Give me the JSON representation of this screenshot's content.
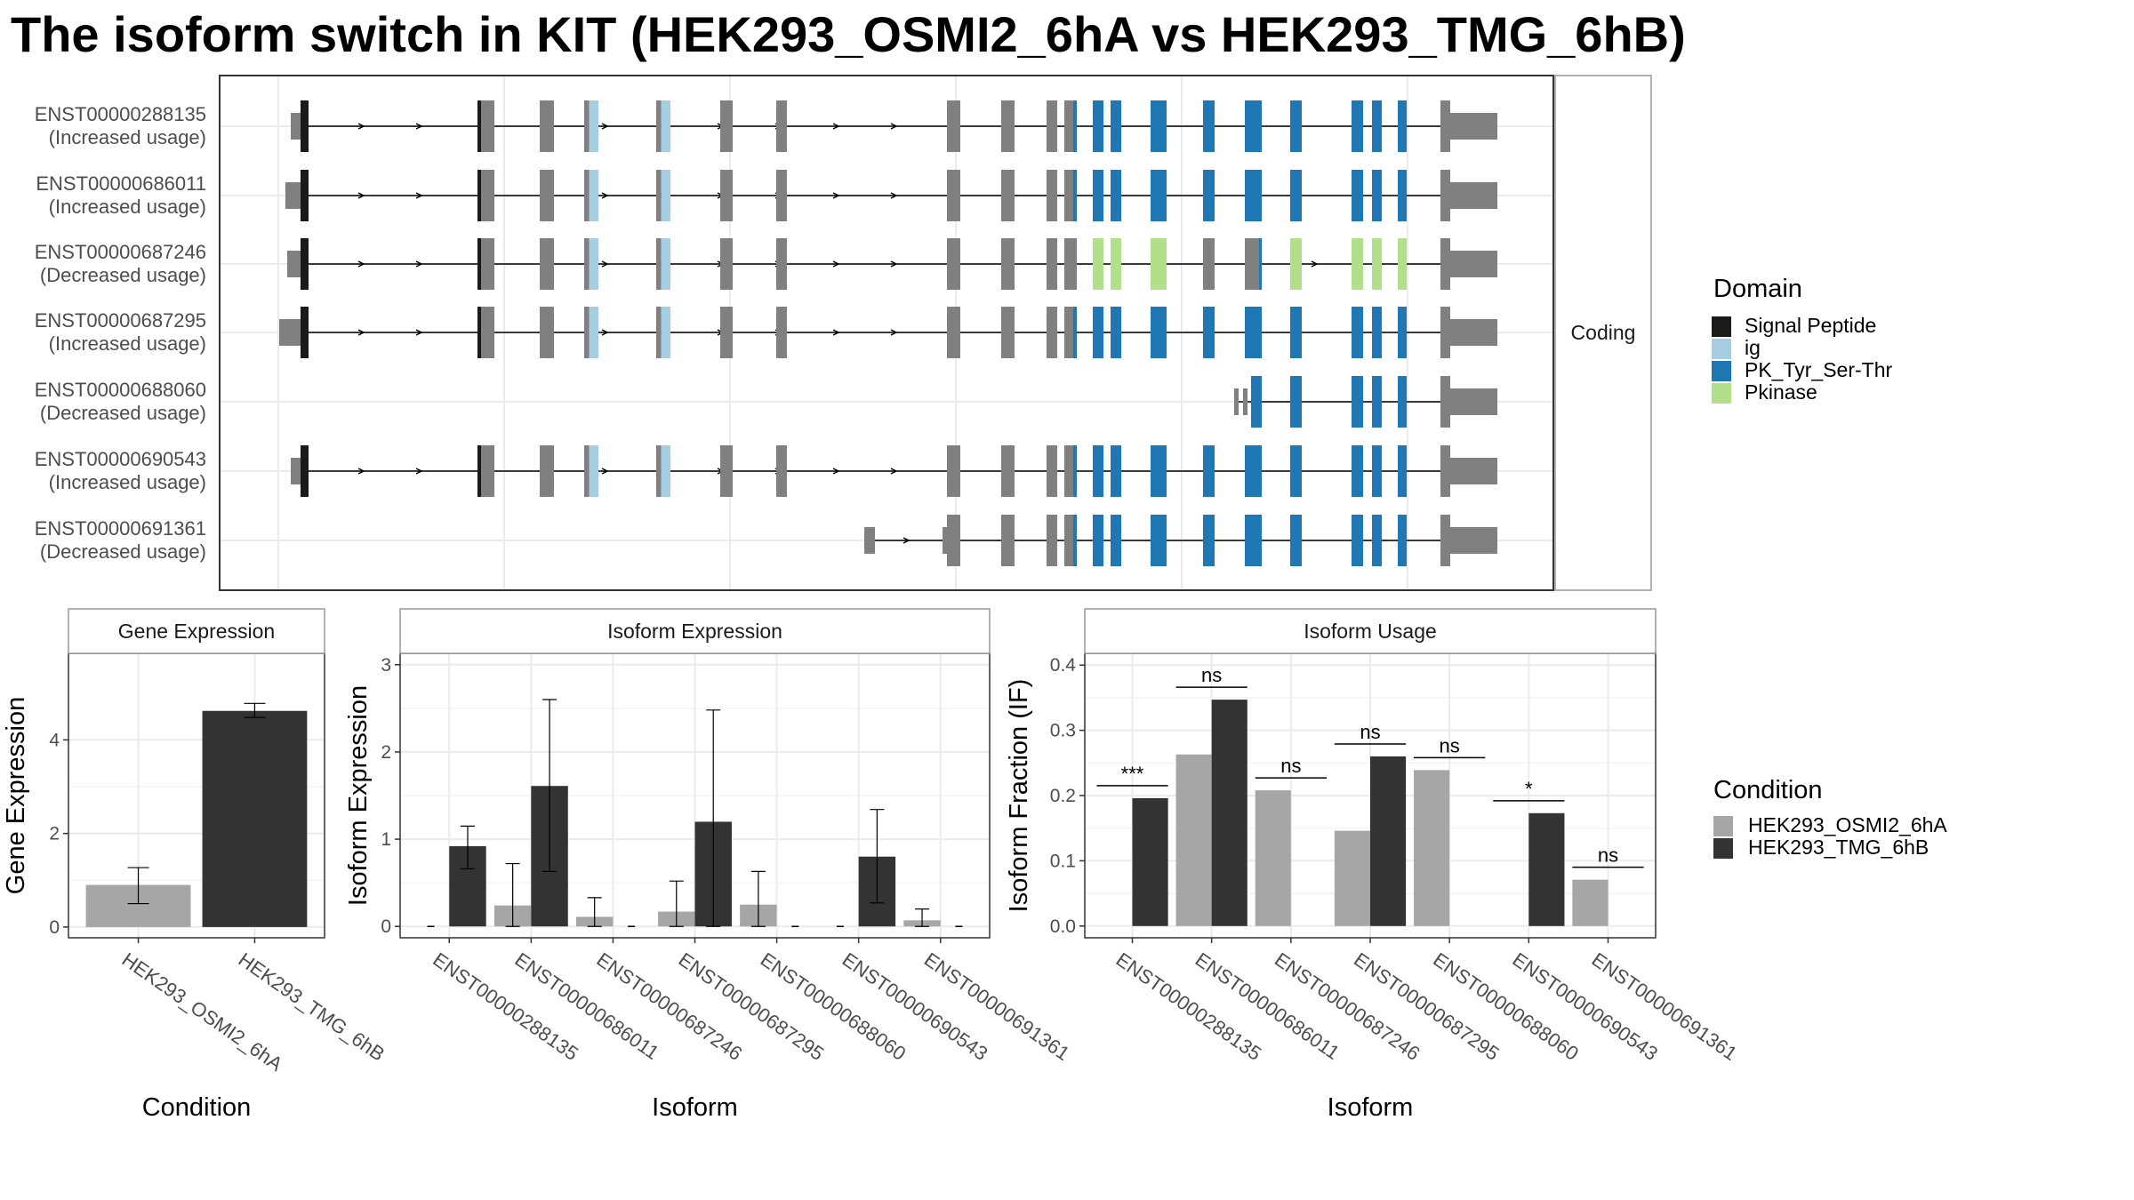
{
  "title": "The isoform switch in KIT (HEK293_OSMI2_6hA vs HEK293_TMG_6hB)",
  "colors": {
    "signal_peptide": "#1a1a1a",
    "ig": "#a6cee3",
    "pk_tyr": "#1f78b4",
    "pkinase": "#b2df8a",
    "exon": "#808080",
    "condition_a": "#a6a6a6",
    "condition_b": "#333333",
    "grid": "#ebebeb",
    "panel_border": "#333333",
    "strip_border": "#999999"
  },
  "structure": {
    "strip_label": "Coding",
    "isoforms": [
      {
        "id": "ENST00000288135",
        "status": "(Increased usage)"
      },
      {
        "id": "ENST00000686011",
        "status": "(Increased usage)"
      },
      {
        "id": "ENST00000687246",
        "status": "(Decreased usage)"
      },
      {
        "id": "ENST00000687295",
        "status": "(Increased usage)"
      },
      {
        "id": "ENST00000688060",
        "status": "(Decreased usage)"
      },
      {
        "id": "ENST00000690543",
        "status": "(Increased usage)"
      },
      {
        "id": "ENST00000691361",
        "status": "(Decreased usage)"
      }
    ],
    "domain_legend": {
      "title": "Domain",
      "items": [
        {
          "label": "Signal Peptide",
          "color_key": "signal_peptide"
        },
        {
          "label": "ig",
          "color_key": "ig"
        },
        {
          "label": "PK_Tyr_Ser-Thr",
          "color_key": "pk_tyr"
        },
        {
          "label": "Pkinase",
          "color_key": "pkinase"
        }
      ]
    }
  },
  "condition_legend": {
    "title": "Condition",
    "items": [
      "HEK293_OSMI2_6hA",
      "HEK293_TMG_6hB"
    ]
  },
  "chart_data": [
    {
      "type": "bar",
      "title": "Gene Expression",
      "xlabel": "Condition",
      "ylabel": "Gene Expression",
      "categories": [
        "HEK293_OSMI2_6hA",
        "HEK293_TMG_6hB"
      ],
      "values": [
        0.9,
        4.62
      ],
      "errors": [
        [
          0.5,
          1.27
        ],
        [
          4.48,
          4.78
        ]
      ],
      "ylim": [
        -0.23,
        5.85
      ],
      "yticks": [
        0,
        2,
        4
      ]
    },
    {
      "type": "bar",
      "title": "Isoform Expression",
      "xlabel": "Isoform",
      "ylabel": "Isoform Expression",
      "categories": [
        "ENST00000288135",
        "ENST00000686011",
        "ENST00000687246",
        "ENST00000687295",
        "ENST00000688060",
        "ENST00000690543",
        "ENST00000691361"
      ],
      "series": [
        {
          "name": "HEK293_OSMI2_6hA",
          "values": [
            0,
            0.24,
            0.11,
            0.17,
            0.25,
            0,
            0.07
          ],
          "errors": [
            null,
            [
              0,
              0.72
            ],
            [
              0,
              0.33
            ],
            [
              0,
              0.52
            ],
            [
              0,
              0.63
            ],
            null,
            [
              0,
              0.2
            ]
          ]
        },
        {
          "name": "HEK293_TMG_6hB",
          "values": [
            0.92,
            1.61,
            0,
            1.2,
            0,
            0.8,
            0
          ],
          "errors": [
            [
              0.66,
              1.15
            ],
            [
              0.63,
              2.6
            ],
            null,
            [
              0,
              2.48
            ],
            null,
            [
              0.27,
              1.34
            ],
            null
          ]
        }
      ],
      "ylim": [
        -0.13,
        3.13
      ],
      "yticks": [
        0,
        1,
        2,
        3
      ]
    },
    {
      "type": "bar",
      "title": "Isoform Usage",
      "xlabel": "Isoform",
      "ylabel": "Isoform Fraction (IF)",
      "categories": [
        "ENST00000288135",
        "ENST00000686011",
        "ENST00000687246",
        "ENST00000687295",
        "ENST00000688060",
        "ENST00000690543",
        "ENST00000691361"
      ],
      "series": [
        {
          "name": "HEK293_OSMI2_6hA",
          "values": [
            0,
            0.263,
            0.208,
            0.146,
            0.239,
            0,
            0.071
          ]
        },
        {
          "name": "HEK293_TMG_6hB",
          "values": [
            0.196,
            0.347,
            0,
            0.26,
            0,
            0.173,
            0
          ]
        }
      ],
      "significance": [
        "***",
        "ns",
        "ns",
        "ns",
        "ns",
        "*",
        "ns"
      ],
      "ylim": [
        -0.018,
        0.418
      ],
      "yticks": [
        0.0,
        0.1,
        0.2,
        0.3,
        0.4
      ],
      "ytick_labels": [
        "0.0",
        "0.1",
        "0.2",
        "0.3",
        "0.4"
      ]
    }
  ]
}
